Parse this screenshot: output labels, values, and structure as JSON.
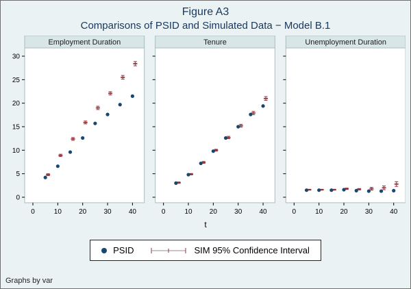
{
  "figure": {
    "title": "Figure A3",
    "subtitle": "Comparisons of PSID and Simulated Data − Model B.1",
    "footer": "Graphs by var"
  },
  "legend": {
    "psid_label": "PSID",
    "sim_label": "SIM  95% Confidence Interval"
  },
  "chart_data": {
    "type": "scatter",
    "title": "Figure A3",
    "subtitle": "Comparisons of PSID and Simulated Data − Model B.1",
    "xlabel": "t",
    "ylabel": "",
    "xlim": [
      0,
      42
    ],
    "ylim": [
      0,
      30
    ],
    "xticks": [
      0,
      10,
      20,
      30,
      40
    ],
    "yticks": [
      0,
      5,
      10,
      15,
      20,
      25,
      30
    ],
    "grid": false,
    "legend_position": "bottom",
    "colors": {
      "psid": "#1a476f",
      "sim": "#90353b"
    },
    "panels": [
      {
        "title": "Employment Duration",
        "x": [
          5,
          10,
          15,
          20,
          25,
          30,
          35,
          40
        ],
        "psid": [
          4.2,
          6.6,
          9.6,
          12.6,
          15.7,
          17.6,
          19.7,
          21.5
        ],
        "sim": [
          4.8,
          8.9,
          12.4,
          15.9,
          19.0,
          22.1,
          25.5,
          28.4
        ],
        "sim_ci": [
          0.2,
          0.25,
          0.3,
          0.3,
          0.35,
          0.35,
          0.4,
          0.45
        ]
      },
      {
        "title": "Tenure",
        "x": [
          5,
          10,
          15,
          20,
          25,
          30,
          35,
          40
        ],
        "psid": [
          3.0,
          4.8,
          7.2,
          9.8,
          12.6,
          15.0,
          17.6,
          19.4
        ],
        "sim": [
          3.1,
          4.9,
          7.4,
          10.0,
          12.7,
          15.2,
          17.9,
          21.0
        ],
        "sim_ci": [
          0.15,
          0.15,
          0.2,
          0.2,
          0.25,
          0.3,
          0.35,
          0.4
        ]
      },
      {
        "title": "Unemployment Duration",
        "x": [
          5,
          10,
          15,
          20,
          25,
          30,
          35,
          40
        ],
        "psid": [
          1.5,
          1.5,
          1.5,
          1.6,
          1.4,
          1.3,
          1.3,
          1.4
        ],
        "sim": [
          1.6,
          1.6,
          1.6,
          1.8,
          1.7,
          1.8,
          2.0,
          2.8
        ],
        "sim_ci": [
          0.1,
          0.1,
          0.1,
          0.15,
          0.15,
          0.3,
          0.4,
          0.5
        ]
      }
    ]
  }
}
